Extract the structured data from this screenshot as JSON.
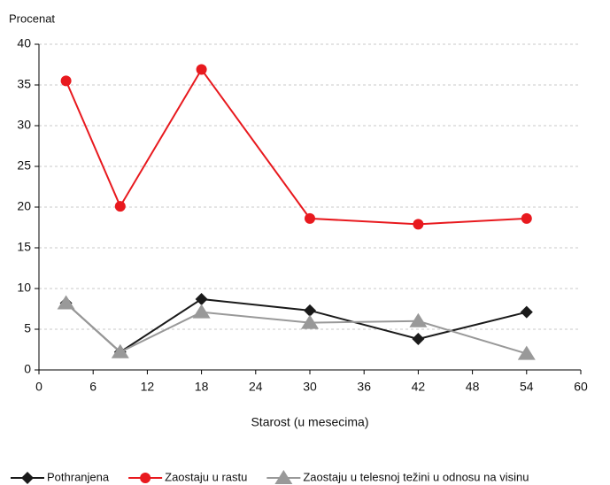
{
  "chart_data": {
    "type": "line",
    "y_label": "Procenat",
    "x_label": "Starost (u mesecima)",
    "x": [
      3,
      9,
      18,
      30,
      42,
      54
    ],
    "series": [
      {
        "name": "Pothranjena",
        "color": "#1a1a1a",
        "marker": "diamond",
        "values": [
          8.2,
          2.2,
          8.7,
          7.3,
          3.8,
          7.1
        ]
      },
      {
        "name": "Zaostaju u rastu",
        "color": "#e8191e",
        "marker": "circle",
        "values": [
          35.5,
          20.1,
          36.9,
          18.6,
          17.9,
          18.6
        ]
      },
      {
        "name": "Zaostaju u telesnoj težini u odnosu na visinu",
        "color": "#999999",
        "marker": "triangle",
        "values": [
          8.2,
          2.2,
          7.1,
          5.8,
          6.0,
          2.0
        ]
      }
    ],
    "xlim": [
      0,
      60
    ],
    "xticks": [
      0,
      6,
      12,
      18,
      24,
      30,
      36,
      42,
      48,
      54,
      60
    ],
    "ylim": [
      0,
      40
    ],
    "yticks": [
      0,
      5,
      10,
      15,
      20,
      25,
      30,
      35,
      40
    ],
    "grid": true,
    "legend": "bottom"
  }
}
